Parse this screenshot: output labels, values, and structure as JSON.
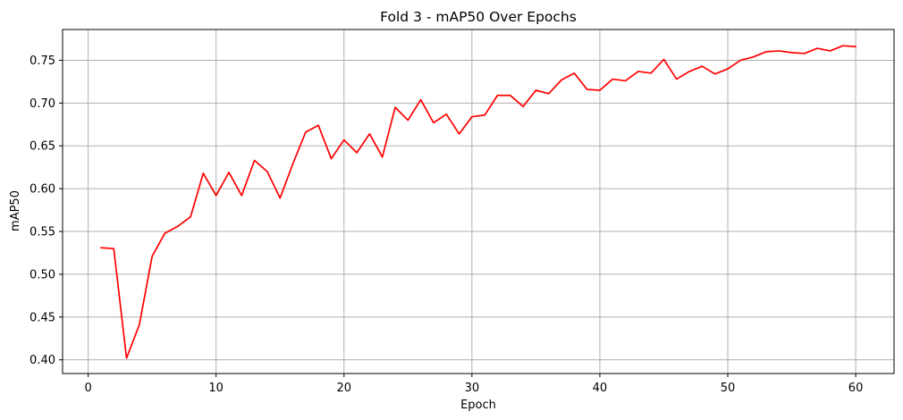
{
  "chart_data": {
    "type": "line",
    "title": "Fold 3 - mAP50 Over Epochs",
    "xlabel": "Epoch",
    "ylabel": "mAP50",
    "xlim": [
      -2.0,
      63.0
    ],
    "ylim": [
      0.384,
      0.786
    ],
    "xticks": [
      0,
      10,
      20,
      30,
      40,
      50,
      60
    ],
    "yticks": [
      0.4,
      0.45,
      0.5,
      0.55,
      0.6,
      0.65,
      0.7,
      0.75
    ],
    "xtick_labels": [
      "0",
      "10",
      "20",
      "30",
      "40",
      "50",
      "60"
    ],
    "ytick_labels": [
      "0.40",
      "0.45",
      "0.50",
      "0.55",
      "0.60",
      "0.65",
      "0.70",
      "0.75"
    ],
    "grid": true,
    "line_color": "#ff0000",
    "series": [
      {
        "x": [
          1,
          2,
          3,
          4,
          5,
          6,
          7,
          8,
          9,
          10,
          11,
          12,
          13,
          14,
          15,
          16,
          17,
          18,
          19,
          20,
          21,
          22,
          23,
          24,
          25,
          26,
          27,
          28,
          29,
          30,
          31,
          32,
          33,
          34,
          35,
          36,
          37,
          38,
          39,
          40,
          41,
          42,
          43,
          44,
          45,
          46,
          47,
          48,
          49,
          50,
          51,
          52,
          53,
          54,
          55,
          56,
          57,
          58,
          59,
          60
        ],
        "values": [
          0.531,
          0.53,
          0.402,
          0.441,
          0.521,
          0.548,
          0.556,
          0.567,
          0.618,
          0.592,
          0.619,
          0.592,
          0.633,
          0.62,
          0.589,
          0.629,
          0.666,
          0.674,
          0.635,
          0.657,
          0.642,
          0.664,
          0.637,
          0.695,
          0.68,
          0.704,
          0.677,
          0.687,
          0.664,
          0.684,
          0.686,
          0.709,
          0.709,
          0.696,
          0.715,
          0.711,
          0.727,
          0.735,
          0.716,
          0.715,
          0.728,
          0.726,
          0.737,
          0.735,
          0.751,
          0.728,
          0.737,
          0.743,
          0.734,
          0.74,
          0.75,
          0.754,
          0.76,
          0.761,
          0.759,
          0.758,
          0.764,
          0.761,
          0.767,
          0.766
        ]
      }
    ]
  }
}
